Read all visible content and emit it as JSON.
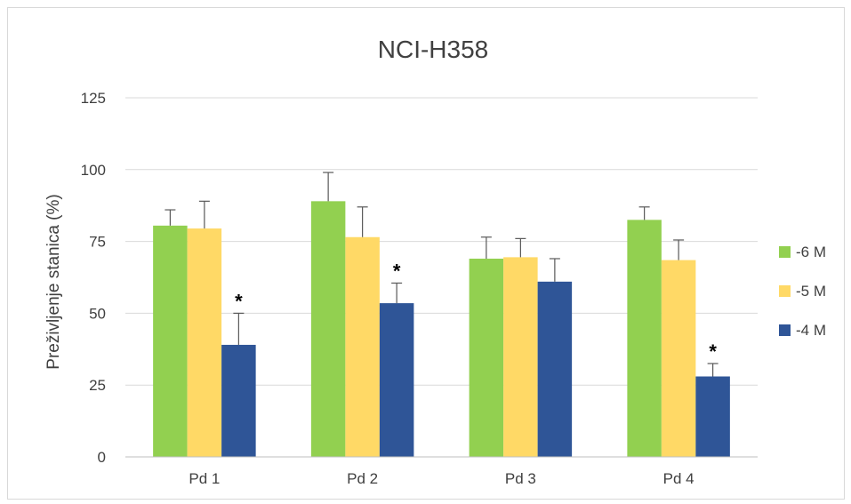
{
  "chart_data": {
    "type": "bar",
    "title": "NCI-H358",
    "xlabel": "",
    "ylabel": "Preživljenje stanica (%)",
    "ylim": [
      0,
      125
    ],
    "yticks": [
      0,
      25,
      50,
      75,
      100,
      125
    ],
    "categories": [
      "Pd 1",
      "Pd 2",
      "Pd 3",
      "Pd 4"
    ],
    "series": [
      {
        "name": "-6 M",
        "color": "#92d050",
        "values": [
          80.5,
          89,
          69,
          82.5
        ],
        "errors": [
          5.5,
          10,
          7.5,
          4.5
        ]
      },
      {
        "name": "-5 M",
        "color": "#ffd966",
        "values": [
          79.5,
          76.5,
          69.5,
          68.5
        ],
        "errors": [
          9.5,
          10.5,
          6.5,
          7
        ]
      },
      {
        "name": "-4 M",
        "color": "#2f5597",
        "values": [
          39,
          53.5,
          61,
          28
        ],
        "errors": [
          11,
          7,
          8,
          4.5
        ]
      }
    ],
    "annotations": [
      {
        "category": "Pd 1",
        "series": "-4 M",
        "text": "*"
      },
      {
        "category": "Pd 2",
        "series": "-4 M",
        "text": "*"
      },
      {
        "category": "Pd 4",
        "series": "-4 M",
        "text": "*"
      }
    ],
    "grid": true,
    "legend": "right"
  }
}
